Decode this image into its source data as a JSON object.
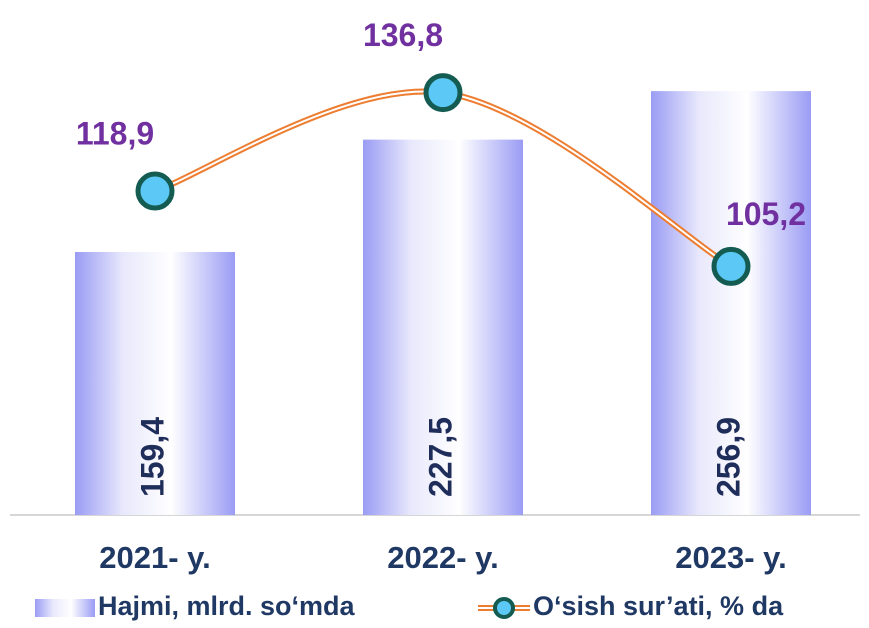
{
  "chart_data": {
    "type": "bar_line",
    "categories": [
      "2021- y.",
      "2022- y.",
      "2023- y."
    ],
    "series": [
      {
        "name": "Hajmi, mlrd. so‘mda",
        "type": "bar",
        "color": "#9a9cf4",
        "values": [
          159.4,
          227.5,
          256.9
        ],
        "value_labels": [
          "159,4",
          "227,5",
          "256,9"
        ]
      },
      {
        "name": "O‘sish sur’ati, % da",
        "type": "line",
        "axis": "y2",
        "color": "#ed7d31",
        "marker_color": "#5bc8f5",
        "values": [
          118.9,
          136.8,
          105.2
        ],
        "value_labels": [
          "118,9",
          "136,8",
          "105,2"
        ]
      }
    ],
    "ylim": [
      0,
      300
    ],
    "y2lim": [
      60,
      150
    ],
    "legend": "bottom"
  }
}
